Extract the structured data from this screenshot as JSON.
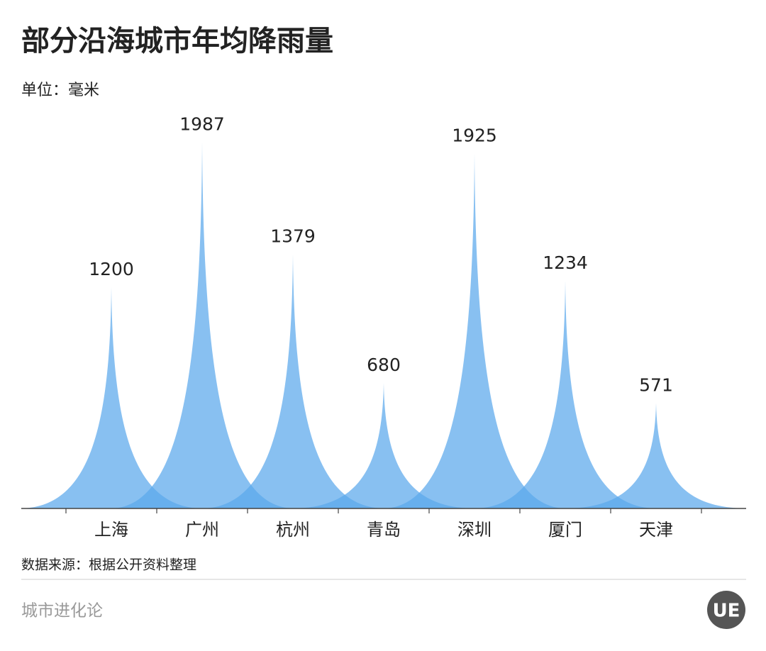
{
  "chart_data": {
    "type": "spike",
    "title": "部分沿海城市年均降雨量",
    "subtitle": "单位：毫米",
    "categories": [
      "上海",
      "广州",
      "杭州",
      "青岛",
      "深圳",
      "厦门",
      "天津"
    ],
    "values": [
      1200,
      1987,
      1379,
      680,
      1925,
      1234,
      571
    ],
    "color": "#5aa7ec",
    "source": "数据来源：根据公开资料整理",
    "footer": "城市进化论",
    "logo": "UE"
  }
}
